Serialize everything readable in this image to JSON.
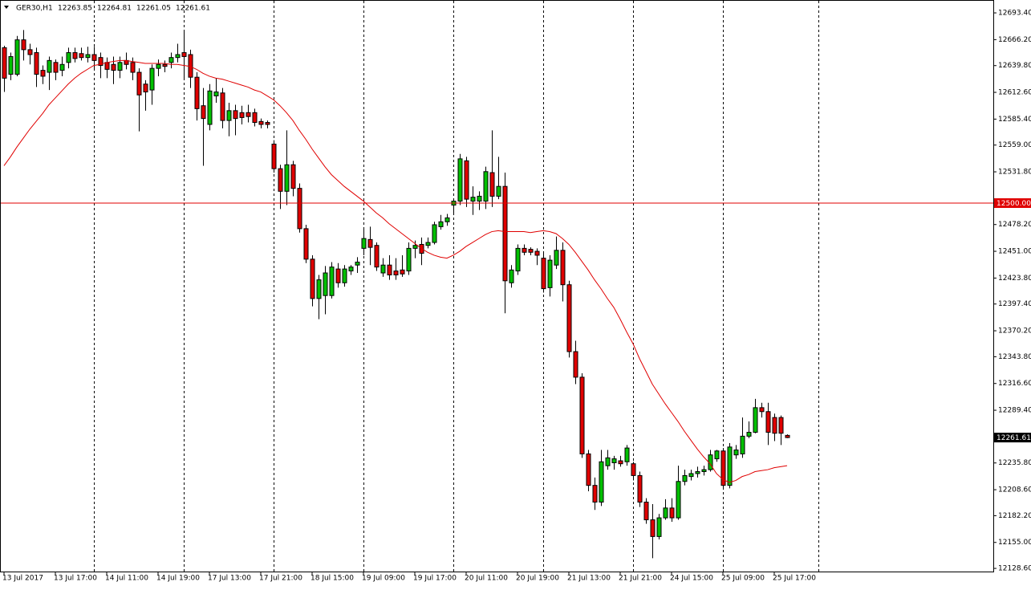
{
  "chart_data": {
    "type": "candlestick",
    "symbol": "GER30,H1",
    "ohlc_text": [
      "12263.85",
      "12264.81",
      "12261.05",
      "12261.61"
    ],
    "categories": [
      "13 Jul 2017",
      null,
      null,
      null,
      null,
      null,
      null,
      null,
      "13 Jul 17:00",
      null,
      null,
      null,
      null,
      null,
      null,
      null,
      "14 Jul 11:00",
      null,
      null,
      null,
      null,
      null,
      null,
      null,
      "14 Jul 19:00",
      null,
      null,
      null,
      null,
      null,
      null,
      null,
      "17 Jul 13:00",
      null,
      null,
      null,
      null,
      null,
      null,
      null,
      "17 Jul 21:00",
      null,
      null,
      null,
      null,
      null,
      null,
      null,
      "18 Jul 15:00",
      null,
      null,
      null,
      null,
      null,
      null,
      null,
      "19 Jul 09:00",
      null,
      null,
      null,
      null,
      null,
      null,
      null,
      "19 Jul 17:00",
      null,
      null,
      null,
      null,
      null,
      null,
      null,
      "20 Jul 11:00",
      null,
      null,
      null,
      null,
      null,
      null,
      null,
      "20 Jul 19:00",
      null,
      null,
      null,
      null,
      null,
      null,
      null,
      "21 Jul 13:00",
      null,
      null,
      null,
      null,
      null,
      null,
      null,
      "21 Jul 21:00",
      null,
      null,
      null,
      null,
      null,
      null,
      null,
      "24 Jul 15:00",
      null,
      null,
      null,
      null,
      null,
      null,
      null,
      "25 Jul 09:00",
      null,
      null,
      null,
      null,
      null,
      null,
      null,
      "25 Jul 17:00",
      null,
      null
    ],
    "open": [
      12658,
      12631,
      12631,
      12666,
      12656,
      12653,
      12635,
      12633,
      12643,
      12635,
      12643,
      12653,
      12652,
      12648,
      12651,
      12648,
      12643,
      12641,
      12635,
      12645,
      12643,
      12633,
      12621,
      12615,
      12637,
      12641,
      12643,
      12648,
      12653,
      12651,
      12628,
      12599,
      12580,
      12609,
      12612,
      12584,
      12594,
      12592,
      12592,
      12592,
      12583,
      12582,
      12560,
      12535,
      12512,
      12539,
      12515,
      12474,
      12443,
      12403,
      12406,
      12406,
      12433,
      12419,
      12431,
      12437,
      12454,
      12463,
      12457,
      12429,
      12437,
      12431,
      12432,
      12431,
      12454,
      12458,
      12457,
      12460,
      12476,
      12481,
      12498,
      12502,
      12543,
      12502,
      12502,
      12502,
      12531,
      12507,
      12517,
      12419,
      12431,
      12454,
      12453,
      12451,
      12444,
      12414,
      12437,
      12452,
      12417,
      12349,
      12323,
      12245,
      12213,
      12196,
      12233,
      12236,
      12238,
      12237,
      12235,
      12223,
      12196,
      12178,
      12161,
      12180,
      12190,
      12180,
      12217,
      12222,
      12225,
      12227,
      12229,
      12240,
      12248,
      12213,
      12244,
      12245,
      12263,
      12267,
      12292,
      12288,
      12282,
      12282,
      12263.85
    ],
    "high": [
      12660,
      12653,
      12670,
      12676,
      12662,
      12658,
      12640,
      12649,
      12646,
      12649,
      12658,
      12658,
      12658,
      12659,
      12659,
      12653,
      12648,
      12649,
      12649,
      12653,
      12648,
      12637,
      12625,
      12641,
      12646,
      12645,
      12653,
      12662,
      12676,
      12656,
      12633,
      12617,
      12621,
      12627,
      12617,
      12602,
      12600,
      12599,
      12600,
      12596,
      12586,
      12584,
      12564,
      12539,
      12574,
      12543,
      12520,
      12478,
      12447,
      12427,
      12436,
      12440,
      12439,
      12437,
      12437,
      12445,
      12474,
      12476,
      12460,
      12444,
      12447,
      12444,
      12447,
      12460,
      12462,
      12465,
      12465,
      12481,
      12488,
      12489,
      12504,
      12550,
      12547,
      12517,
      12512,
      12537,
      12574,
      12547,
      12531,
      12437,
      12458,
      12458,
      12455,
      12454,
      12449,
      12447,
      12466,
      12460,
      12421,
      12360,
      12327,
      12249,
      12221,
      12249,
      12249,
      12243,
      12243,
      12254,
      12237,
      12227,
      12200,
      12194,
      12184,
      12199,
      12200,
      12233,
      12229,
      12229,
      12232,
      12233,
      12249,
      12249,
      12251,
      12256,
      12254,
      12282,
      12278,
      12301,
      12297,
      12297,
      12286,
      12284,
      12264.81
    ],
    "low": [
      12613,
      12625,
      12629,
      12645,
      12641,
      12618,
      12621,
      12615,
      12625,
      12629,
      12637,
      12643,
      12645,
      12643,
      12637,
      12627,
      12627,
      12621,
      12627,
      12636,
      12625,
      12573,
      12594,
      12600,
      12629,
      12633,
      12637,
      12643,
      12627,
      12617,
      12584,
      12538,
      12574,
      12602,
      12576,
      12568,
      12569,
      12580,
      12582,
      12578,
      12576,
      12576,
      12531,
      12494,
      12498,
      12507,
      12470,
      12439,
      12395,
      12382,
      12387,
      12403,
      12414,
      12415,
      12427,
      12429,
      12447,
      12437,
      12431,
      12425,
      12422,
      12422,
      12425,
      12427,
      12444,
      12437,
      12454,
      12458,
      12473,
      12477,
      12488,
      12498,
      12496,
      12488,
      12493,
      12494,
      12496,
      12504,
      12388,
      12414,
      12427,
      12447,
      12447,
      12437,
      12409,
      12405,
      12433,
      12400,
      12343,
      12316,
      12241,
      12207,
      12188,
      12192,
      12229,
      12229,
      12232,
      12233,
      12218,
      12191,
      12174,
      12139,
      12158,
      12178,
      12176,
      12178,
      12213,
      12218,
      12221,
      12223,
      12227,
      12237,
      12209,
      12210,
      12240,
      12241,
      12261,
      12266,
      12282,
      12254,
      12258,
      12254,
      12261.05
    ],
    "close": [
      12627,
      12649,
      12666,
      12656,
      12651,
      12631,
      12629,
      12645,
      12633,
      12641,
      12653,
      12647,
      12648,
      12651,
      12645,
      12640,
      12636,
      12635,
      12643,
      12641,
      12633,
      12610,
      12613,
      12637,
      12641,
      12639,
      12648,
      12651,
      12649,
      12628,
      12596,
      12586,
      12614,
      12613,
      12584,
      12594,
      12586,
      12587,
      12588,
      12582,
      12580,
      12580,
      12535,
      12512,
      12539,
      12515,
      12474,
      12443,
      12403,
      12422,
      12429,
      12435,
      12419,
      12433,
      12435,
      12440,
      12464,
      12455,
      12435,
      12437,
      12427,
      12427,
      12428,
      12454,
      12457,
      12449,
      12460,
      12478,
      12481,
      12485,
      12502,
      12545,
      12504,
      12506,
      12507,
      12532,
      12507,
      12517,
      12421,
      12432,
      12454,
      12450,
      12450,
      12447,
      12413,
      12442,
      12452,
      12417,
      12349,
      12323,
      12245,
      12213,
      12196,
      12237,
      12241,
      12240,
      12235,
      12251,
      12223,
      12196,
      12178,
      12161,
      12180,
      12190,
      12180,
      12217,
      12223,
      12225,
      12227,
      12229,
      12244,
      12248,
      12213,
      12252,
      12249,
      12263,
      12267,
      12292,
      12288,
      12267,
      12266,
      12266,
      12261.61
    ],
    "up_color": "#00c000",
    "down_color": "#e00000",
    "ma": {
      "color": "#e00000",
      "values": [
        12538,
        12547,
        12557,
        12566,
        12575,
        12583,
        12591,
        12600,
        12607,
        12614,
        12621,
        12627,
        12632,
        12636,
        12640,
        12641,
        12643,
        12644,
        12645,
        12645,
        12644,
        12643,
        12642,
        12642,
        12642,
        12642,
        12641,
        12641,
        12640,
        12639,
        12636,
        12632,
        12629,
        12627,
        12626,
        12624,
        12622,
        12620,
        12618,
        12615,
        12613,
        12609,
        12605,
        12599,
        12592,
        12584,
        12574,
        12565,
        12555,
        12546,
        12537,
        12529,
        12523,
        12517,
        12512,
        12507,
        12502,
        12496,
        12490,
        12485,
        12479,
        12474,
        12469,
        12464,
        12459,
        12454,
        12450,
        12447,
        12445,
        12444,
        12447,
        12451,
        12456,
        12460,
        12464,
        12468,
        12471,
        12472,
        12471,
        12471,
        12471,
        12471,
        12470,
        12471,
        12472,
        12471,
        12469,
        12464,
        12458,
        12450,
        12441,
        12432,
        12422,
        12413,
        12403,
        12394,
        12382,
        12369,
        12357,
        12342,
        12329,
        12316,
        12306,
        12296,
        12287,
        12278,
        12268,
        12259,
        12250,
        12242,
        12235,
        12225,
        12219,
        12216,
        12218,
        12222,
        12224,
        12227,
        12228,
        12229,
        12231,
        12232,
        12233
      ]
    },
    "level": {
      "value": 12500,
      "label": "12500.00",
      "color": "#e00000"
    },
    "price_label": "12261.61",
    "ylim": [
      12125.4,
      12706.5
    ],
    "yticks": [
      {
        "value": 12693.4,
        "label": "12693.40"
      },
      {
        "value": 12666.2,
        "label": "12666.20"
      },
      {
        "value": 12639.8,
        "label": "12639.80"
      },
      {
        "value": 12612.6,
        "label": "12612.60"
      },
      {
        "value": 12585.4,
        "label": "12585.40"
      },
      {
        "value": 12559,
        "label": "12559.00"
      },
      {
        "value": 12531.8,
        "label": "12531.80"
      },
      {
        "value": 12478.2,
        "label": "12478.20"
      },
      {
        "value": 12451,
        "label": "12451.00"
      },
      {
        "value": 12423.8,
        "label": "12423.80"
      },
      {
        "value": 12397.4,
        "label": "12397.40"
      },
      {
        "value": 12370.2,
        "label": "12370.20"
      },
      {
        "value": 12343.8,
        "label": "12343.80"
      },
      {
        "value": 12316.6,
        "label": "12316.60"
      },
      {
        "value": 12289.4,
        "label": "12289.40"
      },
      {
        "value": 12235.8,
        "label": "12235.80"
      },
      {
        "value": 12208.6,
        "label": "12208.60"
      },
      {
        "value": 12182.2,
        "label": "12182.20"
      },
      {
        "value": 12155,
        "label": "12155.00"
      },
      {
        "value": 12128.6,
        "label": "12128.60"
      }
    ]
  }
}
